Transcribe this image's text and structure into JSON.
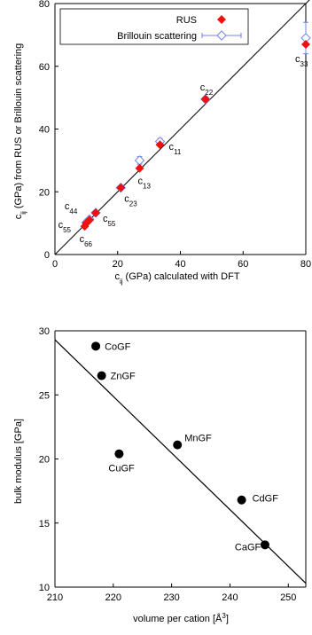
{
  "chart_data": [
    {
      "type": "scatter",
      "xlabel_main": "c",
      "xlabel_sub": "ij",
      "xlabel_rest": " (GPa) calculated with DFT",
      "ylabel_main": "c",
      "ylabel_sub": "ij",
      "ylabel_rest": " (GPa) from RUS or Brillouin scattering",
      "xlim": [
        0,
        80
      ],
      "ylim": [
        0,
        80
      ],
      "xticks": [
        0,
        20,
        40,
        60,
        80
      ],
      "yticks": [
        0,
        20,
        40,
        60,
        80
      ],
      "legend": "top-left",
      "colors": {
        "rus": "#ee1111",
        "brillouin": "#6f86e6"
      },
      "series": [
        {
          "name": "RUS",
          "points": [
            {
              "x": 80.0,
              "y": 67.0
            },
            {
              "x": 48.0,
              "y": 49.5
            },
            {
              "x": 33.5,
              "y": 35.0
            },
            {
              "x": 27.0,
              "y": 27.5
            },
            {
              "x": 21.0,
              "y": 21.3
            },
            {
              "x": 13.0,
              "y": 13.3
            },
            {
              "x": 11.0,
              "y": 11.0
            },
            {
              "x": 10.0,
              "y": 10.0
            },
            {
              "x": 9.5,
              "y": 9.0
            }
          ]
        },
        {
          "name": "Brillouin scattering",
          "points": [
            {
              "x": 80.0,
              "y": 69.0,
              "err": 5.0
            },
            {
              "x": 48.0,
              "y": 49.5,
              "err": 0.8
            },
            {
              "x": 33.5,
              "y": 36.0,
              "err": 1.0
            },
            {
              "x": 27.0,
              "y": 30.0,
              "err": 1.2
            },
            {
              "x": 21.0,
              "y": 21.3,
              "err": 0.5
            },
            {
              "x": 13.0,
              "y": 13.3,
              "err": 0.5
            },
            {
              "x": 11.0,
              "y": 11.2,
              "err": 0.5
            },
            {
              "x": 10.0,
              "y": 10.2,
              "err": 0.5
            }
          ]
        }
      ],
      "annotations": [
        {
          "main": "c",
          "sub": "33",
          "x": 80.0,
          "y": 67.0,
          "dx": -12,
          "dy": 20
        },
        {
          "main": "c",
          "sub": "22",
          "x": 48.0,
          "y": 49.5,
          "dx": -6,
          "dy": -10
        },
        {
          "main": "c",
          "sub": "11",
          "x": 33.5,
          "y": 35.0,
          "dx": 10,
          "dy": 6
        },
        {
          "main": "c",
          "sub": "13",
          "x": 27.0,
          "y": 27.5,
          "dx": -2,
          "dy": 18
        },
        {
          "main": "c",
          "sub": "23",
          "x": 21.0,
          "y": 21.3,
          "dx": 4,
          "dy": 16
        },
        {
          "main": "c",
          "sub": "44",
          "x": 11.0,
          "y": 11.0,
          "dx": -28,
          "dy": -12
        },
        {
          "main": "c",
          "sub": "55",
          "x": 13.0,
          "y": 13.3,
          "dx": 8,
          "dy": 10
        },
        {
          "main": "c",
          "sub": "55",
          "x": 9.5,
          "y": 9.0,
          "dx": -30,
          "dy": 2
        },
        {
          "main": "c",
          "sub": "66",
          "x": 9.5,
          "y": 9.0,
          "dx": -6,
          "dy": 18
        }
      ],
      "reference_line": {
        "x": [
          0,
          87
        ],
        "y": [
          0,
          87
        ]
      }
    },
    {
      "type": "scatter",
      "xlabel_main": "volume per cation [Å",
      "xlabel_sup": "3",
      "xlabel_rest": "]",
      "ylabel": "bulk modulus [GPa]",
      "xlim": [
        210,
        253
      ],
      "ylim": [
        10,
        30
      ],
      "xticks": [
        210,
        220,
        230,
        240,
        250
      ],
      "yticks": [
        10,
        15,
        20,
        25,
        30
      ],
      "points": [
        {
          "label": "CoGF",
          "x": 217.0,
          "y": 28.8,
          "dx": 10,
          "dy": 4
        },
        {
          "label": "ZnGF",
          "x": 218.0,
          "y": 26.5,
          "dx": 10,
          "dy": 4
        },
        {
          "label": "MnGF",
          "x": 231.0,
          "y": 21.1,
          "dx": 8,
          "dy": -4
        },
        {
          "label": "CuGF",
          "x": 221.0,
          "y": 20.4,
          "dx": -12,
          "dy": 20
        },
        {
          "label": "CdGF",
          "x": 242.0,
          "y": 16.8,
          "dx": 12,
          "dy": 2
        },
        {
          "label": "CaGF",
          "x": 246.0,
          "y": 13.3,
          "dx": -34,
          "dy": 6
        }
      ],
      "fit_line": {
        "x": [
          210,
          253
        ],
        "y": [
          29.3,
          10.3
        ]
      }
    }
  ],
  "legend_rus": "RUS",
  "legend_brillouin": "Brillouin scattering"
}
